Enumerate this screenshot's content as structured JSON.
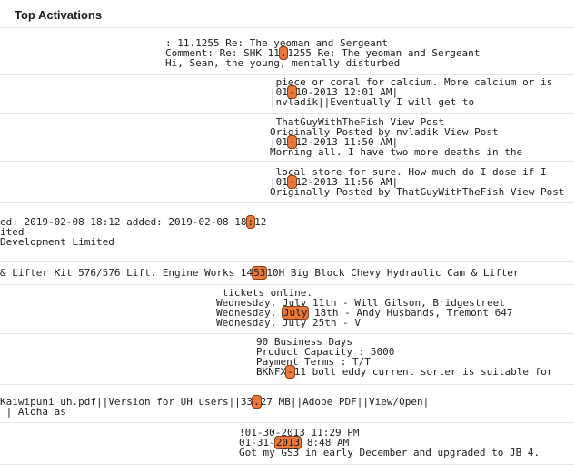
{
  "page": {
    "title": "Top Activations"
  },
  "activations": [
    {
      "lines": [
        {
          "pre": ": 11.1255 Re: The yeoman and Sergeant"
        },
        {
          "pre": "Comment: Re: SHK 11",
          "hl": ".",
          "post": "1255 Re: The yeoman and Sergeant"
        },
        {
          "pre": "Hi, Sean, the young, mentally disturbed"
        }
      ]
    },
    {
      "lines": [
        {
          "pre": " piece or coral for calcium. More calcium or is"
        },
        {
          "pre": "|01",
          "hl": "-",
          "post": "10-2013 12:01 AM|"
        },
        {
          "pre": "|nvladik||Eventually I will get to"
        }
      ]
    },
    {
      "lines": [
        {
          "pre": " ThatGuyWithTheFish View Post"
        },
        {
          "pre": "Originally Posted by nvladik View Post"
        },
        {
          "pre": "|01",
          "hl": "-",
          "post": "12-2013 11:50 AM|"
        },
        {
          "pre": "Morning all. I have two more deaths in the"
        }
      ]
    },
    {
      "lines": [
        {
          "pre": " local store for sure. How much do I dose if I"
        },
        {
          "pre": "|01",
          "hl": "-",
          "post": "12-2013 11:56 AM|"
        },
        {
          "pre": "Originally Posted by ThatGuyWithTheFish View Post"
        }
      ]
    },
    {
      "lines": [
        {
          "pre": "ed: 2019-02-08 18:12 added: 2019-02-08 18",
          "hl": ":",
          "post": "12"
        },
        {
          "pre": "ited"
        },
        {
          "pre": "Development Limited"
        }
      ]
    },
    {
      "lines": [
        {
          "pre": "& Lifter Kit 576/576 Lift. Engine Works 14",
          "hl": "53",
          "post": "10H Big Block Chevy Hydraulic Cam & Lifter"
        }
      ]
    },
    {
      "lines": [
        {
          "pre": " tickets online."
        },
        {
          "pre": "Wednesday, July 11th - Will Gilson, Bridgestreet"
        },
        {
          "pre": "Wednesday, ",
          "hl": "July",
          "post": " 18th - Andy Husbands, Tremont 647"
        },
        {
          "pre": "Wednesday, July 25th - V"
        }
      ]
    },
    {
      "lines": [
        {
          "pre": "90 Business Days"
        },
        {
          "pre": "Product Capacity : 5000"
        },
        {
          "pre": "Payment Terms : T/T"
        },
        {
          "pre": "BKNFX",
          "hl": "-",
          "post": "11 bolt eddy current sorter is suitable for"
        }
      ]
    },
    {
      "lines": [
        {
          "pre": "Kaiwipuni uh.pdf||Version for UH users||33",
          "hl": ".",
          "post": "27 MB||Adobe PDF||View/Open|"
        },
        {
          "pre": " ||Aloha as"
        }
      ]
    },
    {
      "lines": [
        {
          "pre": "!01-30-2013 11:29 PM"
        },
        {
          "pre": "01-31-",
          "hl": "2013",
          "post": " 8:48 AM"
        },
        {
          "pre": "Got my GS3 in early December and upgraded to JB 4."
        }
      ]
    }
  ]
}
